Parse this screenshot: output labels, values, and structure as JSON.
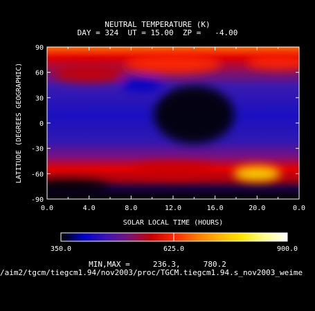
{
  "title_line1": "NEUTRAL TEMPERATURE (K)",
  "title_line2": "DAY = 324  UT = 15.00  ZP =   -4.00",
  "minmax_line": "MIN,MAX =     236.3,     780.2",
  "file_path": "/aim2/tgcm/tiegcm1.94/nov2003/proc/TGCM.tiegcm1.94.s_nov2003_weime",
  "chart_data": {
    "type": "heatmap",
    "title": "NEUTRAL TEMPERATURE (K)",
    "subtitle": "DAY = 324  UT = 15.00  ZP =   -4.00",
    "xlabel": "SOLAR LOCAL TIME (HOURS)",
    "ylabel": "LATITUDE (DEGREES GEOGRAPHIC)",
    "xlim": [
      0,
      24
    ],
    "ylim": [
      -90,
      90
    ],
    "x_tick_labels": [
      "0.0",
      "4.0",
      "8.0",
      "12.0",
      "16.0",
      "20.0",
      "0.0"
    ],
    "y_tick_labels": [
      "90",
      "60",
      "30",
      "0",
      "-30",
      "-60",
      "-90"
    ],
    "colorbar": {
      "min": 350.0,
      "max": 900.0,
      "tick_labels": [
        "350.0",
        "625.0",
        "900.0"
      ],
      "colors": [
        "#000000",
        "#0000c8",
        "#3c14b4",
        "#781478",
        "#c80000",
        "#ff2800",
        "#ff7800",
        "#ffb400",
        "#ffe600",
        "#ffff8c",
        "#ffffff"
      ]
    },
    "data_min": 236.3,
    "data_max": 780.2,
    "features": [
      {
        "lt": 12,
        "lat": 70,
        "value": 650
      },
      {
        "lt": 22,
        "lat": 72,
        "value": 640
      },
      {
        "lt": 4,
        "lat": 58,
        "value": 560
      },
      {
        "lt": 9,
        "lat": 45,
        "value": 380
      },
      {
        "lt": 14,
        "lat": 10,
        "value": 300
      },
      {
        "lt": 20,
        "lat": -60,
        "value": 780
      },
      {
        "lt": 12,
        "lat": -55,
        "value": 580
      },
      {
        "lt": 2,
        "lat": -75,
        "value": 240
      }
    ]
  }
}
